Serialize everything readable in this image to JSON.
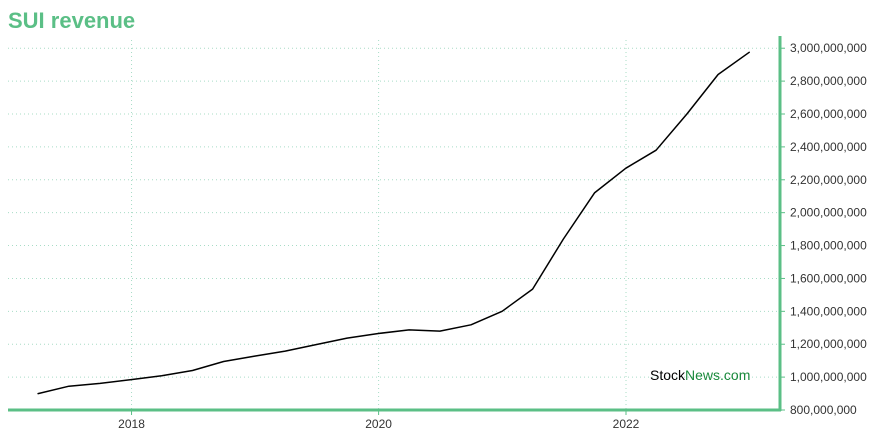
{
  "title": "SUI revenue",
  "watermark": {
    "part1": "Stock",
    "part2": "News",
    "part3": ".com"
  },
  "colors": {
    "title": "#5bbf86",
    "axis": "#5bbf86",
    "grid": "#a8dcc6",
    "line": "#000000",
    "watermark_accent": "#1a8a3c"
  },
  "chart_data": {
    "type": "line",
    "title": "SUI revenue",
    "xlabel": "",
    "ylabel": "",
    "grid": true,
    "y_axis_side": "right",
    "xlim": [
      "2017-01-01",
      "2023-04-01"
    ],
    "ylim": [
      800000000,
      3050000000
    ],
    "x_ticks": [
      {
        "value": "2018-01-01",
        "label": "2018"
      },
      {
        "value": "2020-01-01",
        "label": "2020"
      },
      {
        "value": "2022-01-01",
        "label": "2022"
      }
    ],
    "y_ticks": [
      {
        "value": 800000000,
        "label": "800,000,000"
      },
      {
        "value": 1000000000,
        "label": "1,000,000,000"
      },
      {
        "value": 1200000000,
        "label": "1,200,000,000"
      },
      {
        "value": 1400000000,
        "label": "1,400,000,000"
      },
      {
        "value": 1600000000,
        "label": "1,600,000,000"
      },
      {
        "value": 1800000000,
        "label": "1,800,000,000"
      },
      {
        "value": 2000000000,
        "label": "2,000,000,000"
      },
      {
        "value": 2200000000,
        "label": "2,200,000,000"
      },
      {
        "value": 2400000000,
        "label": "2,400,000,000"
      },
      {
        "value": 2600000000,
        "label": "2,600,000,000"
      },
      {
        "value": 2800000000,
        "label": "2,800,000,000"
      },
      {
        "value": 3000000000,
        "label": "3,000,000,000"
      }
    ],
    "series": [
      {
        "x": [
          "2017-03-31",
          "2017-06-30",
          "2017-09-30",
          "2017-12-31",
          "2018-03-31",
          "2018-06-30",
          "2018-09-30",
          "2018-12-31",
          "2019-03-31",
          "2019-06-30",
          "2019-09-30",
          "2019-12-31",
          "2020-03-31",
          "2020-06-30",
          "2020-09-30",
          "2020-12-31",
          "2021-03-31",
          "2021-06-30",
          "2021-09-30",
          "2021-12-31",
          "2022-03-31",
          "2022-06-30",
          "2022-09-30",
          "2022-12-31"
        ],
        "values": [
          900000000,
          945000000,
          962000000,
          985000000,
          1008000000,
          1040000000,
          1095000000,
          1128000000,
          1158000000,
          1198000000,
          1237000000,
          1265000000,
          1287000000,
          1280000000,
          1318000000,
          1400000000,
          1535000000,
          1840000000,
          2120000000,
          2270000000,
          2380000000,
          2600000000,
          2840000000,
          2975000000
        ]
      }
    ]
  }
}
